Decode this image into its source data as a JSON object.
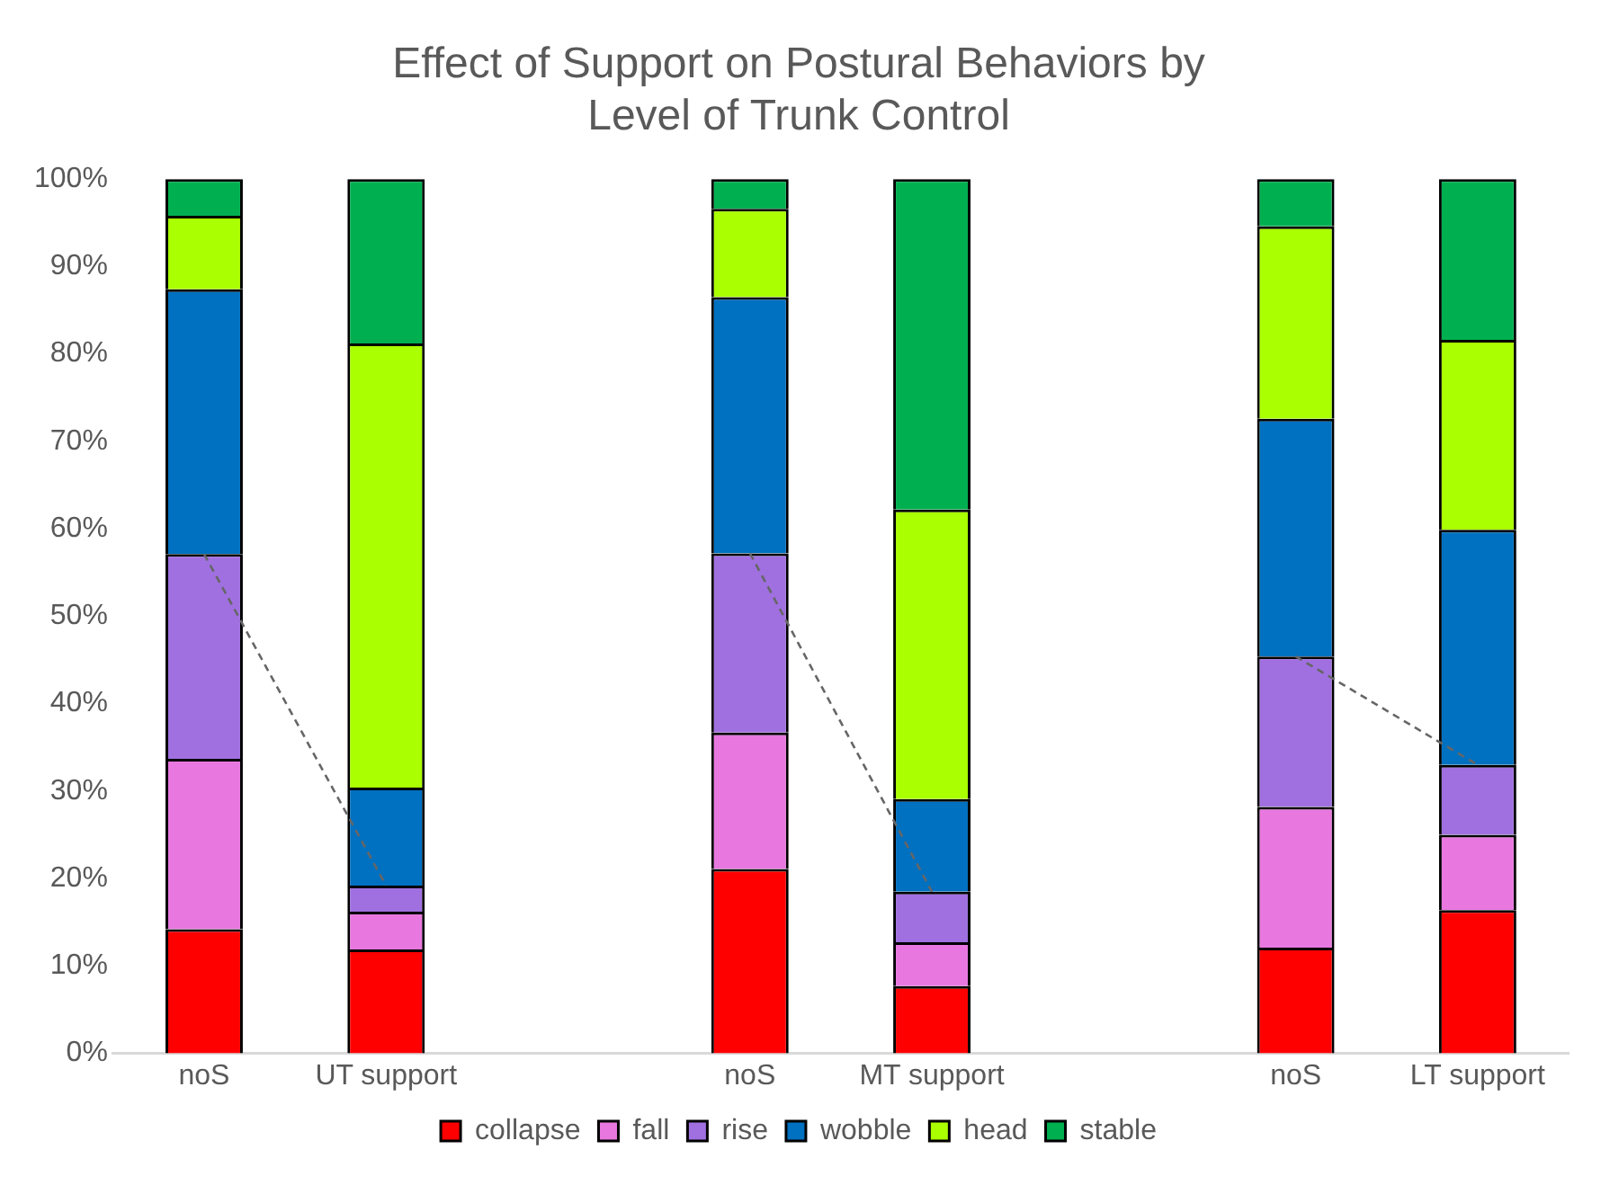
{
  "chart_data": {
    "type": "bar",
    "title": "Effect of Support on Postural Behaviors by Level of Trunk Control",
    "categories": [
      "noS",
      "UT support",
      null,
      "noS",
      "MT support",
      null,
      "noS",
      "LT support"
    ],
    "stacked": true,
    "series": [
      {
        "name": "collapse",
        "color": "#ff0000",
        "values": [
          14.2,
          11.9,
          null,
          21.1,
          7.7,
          null,
          12.1,
          16.4
        ]
      },
      {
        "name": "fall",
        "color": "#e878e0",
        "values": [
          19.5,
          4.3,
          null,
          15.6,
          5.0,
          null,
          16.1,
          8.6
        ]
      },
      {
        "name": "rise",
        "color": "#a070e0",
        "values": [
          23.4,
          3.0,
          null,
          20.5,
          5.8,
          null,
          17.2,
          8.0
        ]
      },
      {
        "name": "wobble",
        "color": "#0070c0",
        "values": [
          30.3,
          11.2,
          null,
          29.3,
          10.6,
          null,
          27.2,
          26.9
        ]
      },
      {
        "name": "head",
        "color": "#aaff00",
        "values": [
          8.4,
          50.8,
          null,
          10.1,
          33.1,
          null,
          22.0,
          21.7
        ]
      },
      {
        "name": "stable",
        "color": "#00b050",
        "values": [
          4.2,
          18.8,
          null,
          3.4,
          37.8,
          null,
          5.4,
          18.4
        ]
      },
      {
        "type": "line",
        "color": "#666666",
        "line_style": "dashed",
        "marker": "none",
        "values": [
          57.1,
          19.2,
          null,
          57.2,
          18.5,
          null,
          45.4,
          33.0
        ]
      }
    ],
    "ylim": [
      0,
      100
    ],
    "yticks": [
      {
        "value": 0,
        "label": "0%"
      },
      {
        "value": 10,
        "label": "10%"
      },
      {
        "value": 20,
        "label": "20%"
      },
      {
        "value": 30,
        "label": "30%"
      },
      {
        "value": 40,
        "label": "40%"
      },
      {
        "value": 50,
        "label": "50%"
      },
      {
        "value": 60,
        "label": "60%"
      },
      {
        "value": 70,
        "label": "70%"
      },
      {
        "value": 80,
        "label": "80%"
      },
      {
        "value": 90,
        "label": "90%"
      },
      {
        "value": 100,
        "label": "100%"
      }
    ],
    "grid": false,
    "legend": "bottom"
  }
}
